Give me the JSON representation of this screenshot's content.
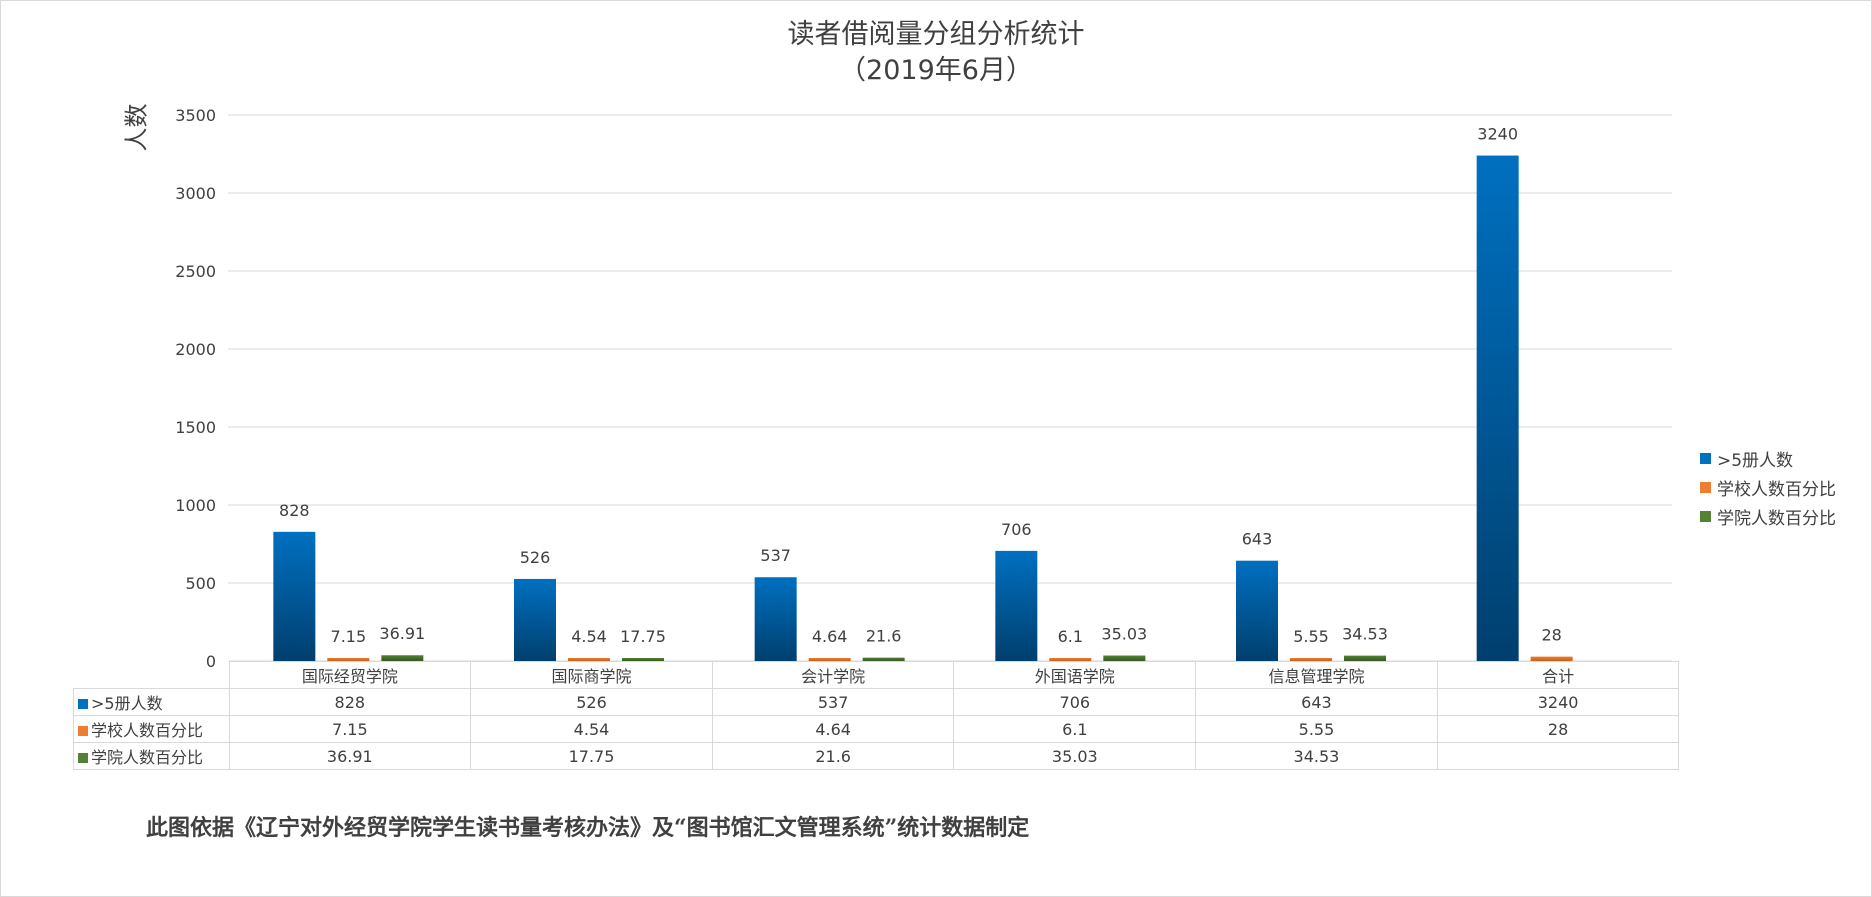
{
  "chart_data": {
    "type": "bar",
    "title": "读者借阅量分组分析统计",
    "subtitle": "（2019年6月）",
    "ylabel": "人数",
    "xlabel": "",
    "ylim": [
      0,
      3500
    ],
    "yticks": [
      0,
      500,
      1000,
      1500,
      2000,
      2500,
      3000,
      3500
    ],
    "grid": true,
    "legend_position": "right",
    "categories": [
      "国际经贸学院",
      "国际商学院",
      "会计学院",
      "外国语学院",
      "信息管理学院",
      "合计"
    ],
    "series": [
      {
        "name": ">5册人数",
        "color": "#0070c0",
        "values": [
          828,
          526,
          537,
          706,
          643,
          3240
        ]
      },
      {
        "name": "学校人数百分比",
        "color": "#ed7d31",
        "values": [
          7.15,
          4.54,
          4.64,
          6.1,
          5.55,
          28
        ]
      },
      {
        "name": "学院人数百分比",
        "color": "#548235",
        "values": [
          36.91,
          17.75,
          21.6,
          35.03,
          34.53,
          null
        ]
      }
    ]
  },
  "footer": "此图依据《辽宁对外经贸学院学生读书量考核办法》及“图书馆汇文管理系统”统计数据制定"
}
